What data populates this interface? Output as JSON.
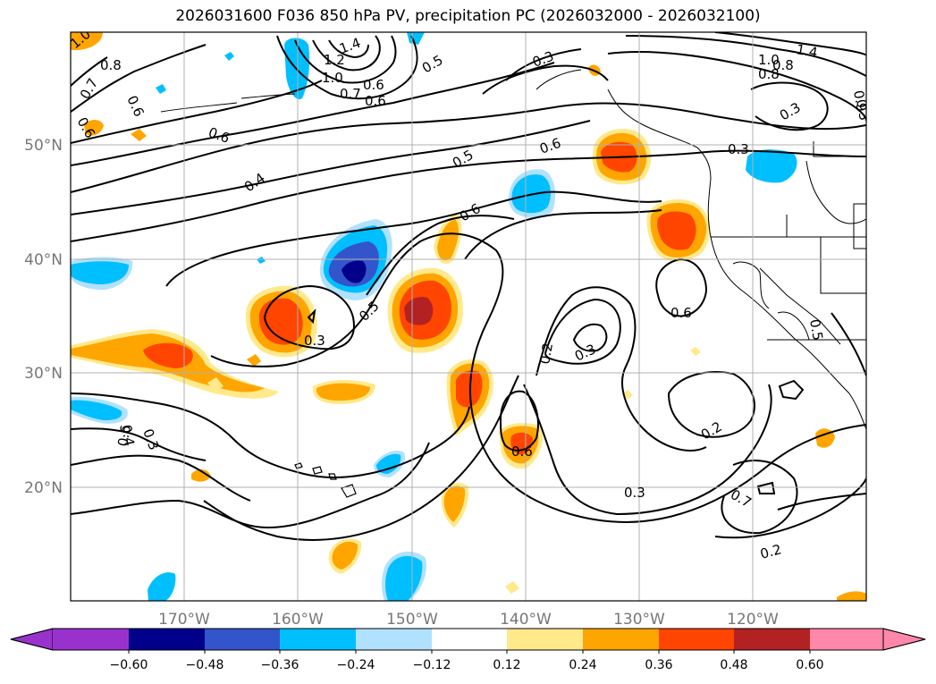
{
  "title": "2026031600 F036 850 hPa PV, precipitation PC (2026032000 - 2026032100)",
  "map": {
    "lon_labels": [
      "170°W",
      "160°W",
      "150°W",
      "140°W",
      "130°W",
      "120°W"
    ],
    "lat_labels": [
      "50°N",
      "40°N",
      "30°N",
      "20°N"
    ],
    "contour_labels": [
      "1.0",
      "1.4",
      "1.2",
      "0.5",
      "0.3",
      "1.4",
      "1.0",
      "0.8",
      "0.8",
      "0.7",
      "0.6",
      "0.6",
      "0.7",
      "0.6",
      "0.6",
      "0.4",
      "0.5",
      "0.6",
      "0.6",
      "0.3",
      "0.3",
      "0.5",
      "0.3",
      "0.2",
      "0.3",
      "0.6",
      "0.6",
      "0.3",
      "0.2",
      "0.3",
      "0.4",
      "0.6",
      "0.7",
      "0.2",
      "0.5",
      "0.9",
      "0.3",
      "0.8",
      "0.6",
      "1.0"
    ]
  },
  "colorbar": {
    "ticks": [
      "−0.60",
      "−0.48",
      "−0.36",
      "−0.24",
      "−0.12",
      "0.12",
      "0.24",
      "0.36",
      "0.48",
      "0.60"
    ],
    "colors": [
      "#9932cc",
      "#00008b",
      "#3355cc",
      "#00bfff",
      "#b0e2ff",
      "#ffffff",
      "#ffe98a",
      "#ffa500",
      "#ff4500",
      "#b22222",
      "#ff88aa"
    ]
  }
}
